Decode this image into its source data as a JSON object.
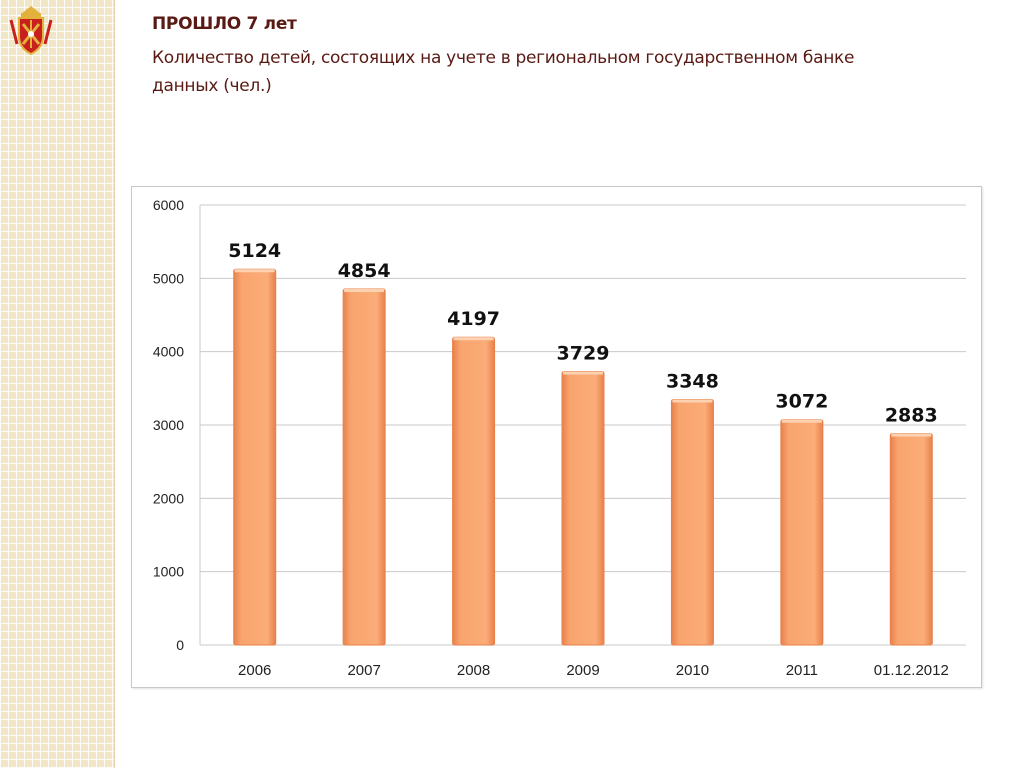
{
  "header": {
    "title": "ПРОШЛО 7 лет",
    "subtitle": "Количество детей, состоящих на учете в региональном государственном банке данных (чел.)"
  },
  "colors": {
    "bar_fill": "#f9a46e",
    "bar_edge": "#e8804a",
    "title_text": "#5a1a14",
    "emblem_red": "#c8201c",
    "emblem_gold": "#e3b23c"
  },
  "icons": {
    "emblem": "coat-of-arms-icon"
  },
  "chart_data": {
    "type": "bar",
    "title": "",
    "xlabel": "",
    "ylabel": "",
    "categories": [
      "2006",
      "2007",
      "2008",
      "2009",
      "2010",
      "2011",
      "01.12.2012"
    ],
    "values": [
      5124,
      4854,
      4197,
      3729,
      3348,
      3072,
      2883
    ],
    "ylim": [
      0,
      6000
    ],
    "yticks": [
      0,
      1000,
      2000,
      3000,
      4000,
      5000,
      6000
    ],
    "grid": true,
    "data_labels": true,
    "legend": "none"
  }
}
